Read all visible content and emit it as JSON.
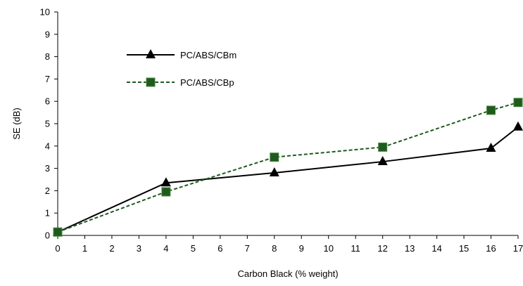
{
  "chart_data": {
    "type": "line",
    "title": "",
    "xlabel": "Carbon Black (% weight)",
    "ylabel": "SE (dB)",
    "x_ticks": [
      "0",
      "1",
      "2",
      "3",
      "4",
      "5",
      "6",
      "7",
      "8",
      "9",
      "10",
      "11",
      "12",
      "13",
      "14",
      "15",
      "16",
      "17"
    ],
    "y_ticks": [
      "0",
      "1",
      "2",
      "3",
      "4",
      "5",
      "6",
      "7",
      "8",
      "9",
      "10"
    ],
    "ylim": [
      0,
      10
    ],
    "grid": false,
    "legend_position": "upper-left",
    "series": [
      {
        "name": "PC/ABS/CBm",
        "marker": "triangle",
        "line_style": "solid",
        "color": "#000000",
        "points": [
          {
            "x": 0,
            "y": 0.15
          },
          {
            "x": 4,
            "y": 2.35
          },
          {
            "x": 8,
            "y": 2.8
          },
          {
            "x": 12,
            "y": 3.3
          },
          {
            "x": 16,
            "y": 3.9
          },
          {
            "x": 17,
            "y": 4.85
          }
        ]
      },
      {
        "name": "PC/ABS/CBp",
        "marker": "square",
        "line_style": "dashed",
        "color": "#1f5a1f",
        "points": [
          {
            "x": 0,
            "y": 0.15
          },
          {
            "x": 4,
            "y": 1.95
          },
          {
            "x": 8,
            "y": 3.5
          },
          {
            "x": 12,
            "y": 3.95
          },
          {
            "x": 16,
            "y": 5.6
          },
          {
            "x": 17,
            "y": 5.95
          }
        ]
      }
    ]
  }
}
